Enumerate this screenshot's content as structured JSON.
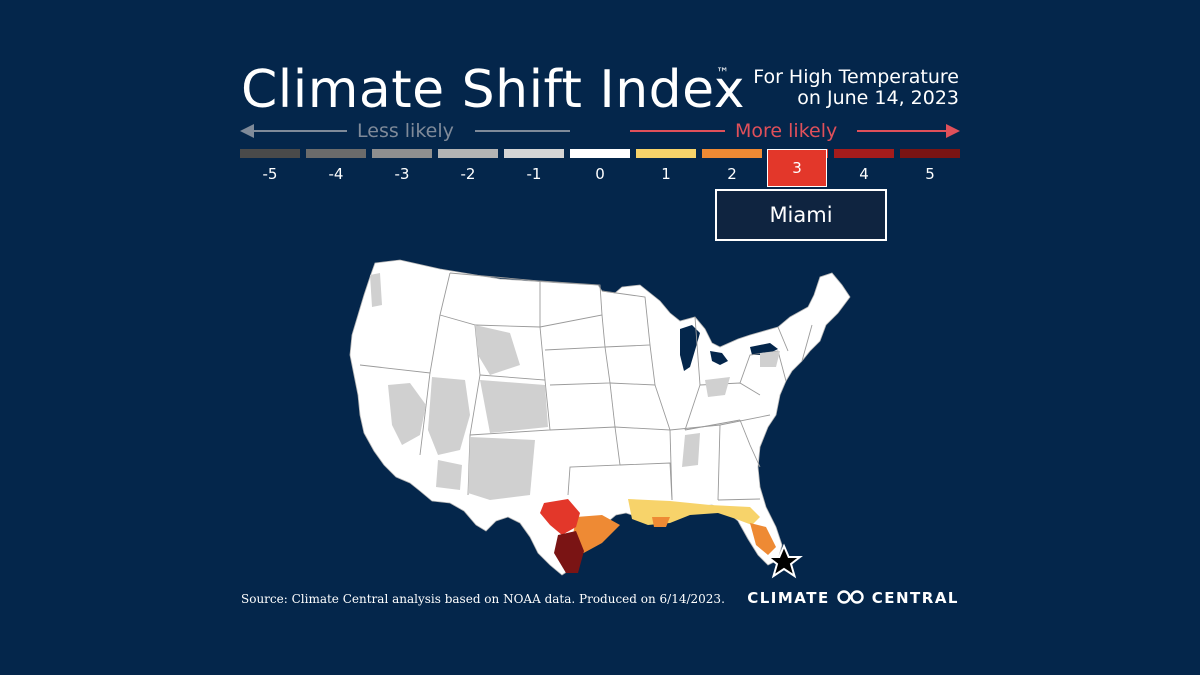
{
  "title": "Climate Shift Index",
  "trademark": "™",
  "subtitle_line1": "For High Temperature",
  "subtitle_line2": "on June 14, 2023",
  "less_likely": "Less likely",
  "more_likely": "More likely",
  "scale": [
    {
      "value": "-5",
      "color": "#4a4a4a"
    },
    {
      "value": "-4",
      "color": "#6b6b6b"
    },
    {
      "value": "-3",
      "color": "#8f8f8f"
    },
    {
      "value": "-2",
      "color": "#b4b4b4"
    },
    {
      "value": "-1",
      "color": "#d5d5d5"
    },
    {
      "value": "0",
      "color": "#ffffff"
    },
    {
      "value": "1",
      "color": "#f7d36a"
    },
    {
      "value": "2",
      "color": "#ee8a34"
    },
    {
      "value": "3",
      "color": "#e3372a"
    },
    {
      "value": "4",
      "color": "#a51c1c"
    },
    {
      "value": "5",
      "color": "#7a1414"
    }
  ],
  "selected_value": "3",
  "tooltip_city": "Miami",
  "source": "Source: Climate Central analysis based on NOAA data. Produced on 6/14/2023.",
  "logo_left": "CLIMATE",
  "logo_right": "CENTRAL",
  "colors": {
    "background": "#04264b",
    "less_arrow": "#7f8a99",
    "more_arrow": "#e0505a",
    "land": "#ffffff",
    "neutral_gray": "#d3d3d3"
  }
}
